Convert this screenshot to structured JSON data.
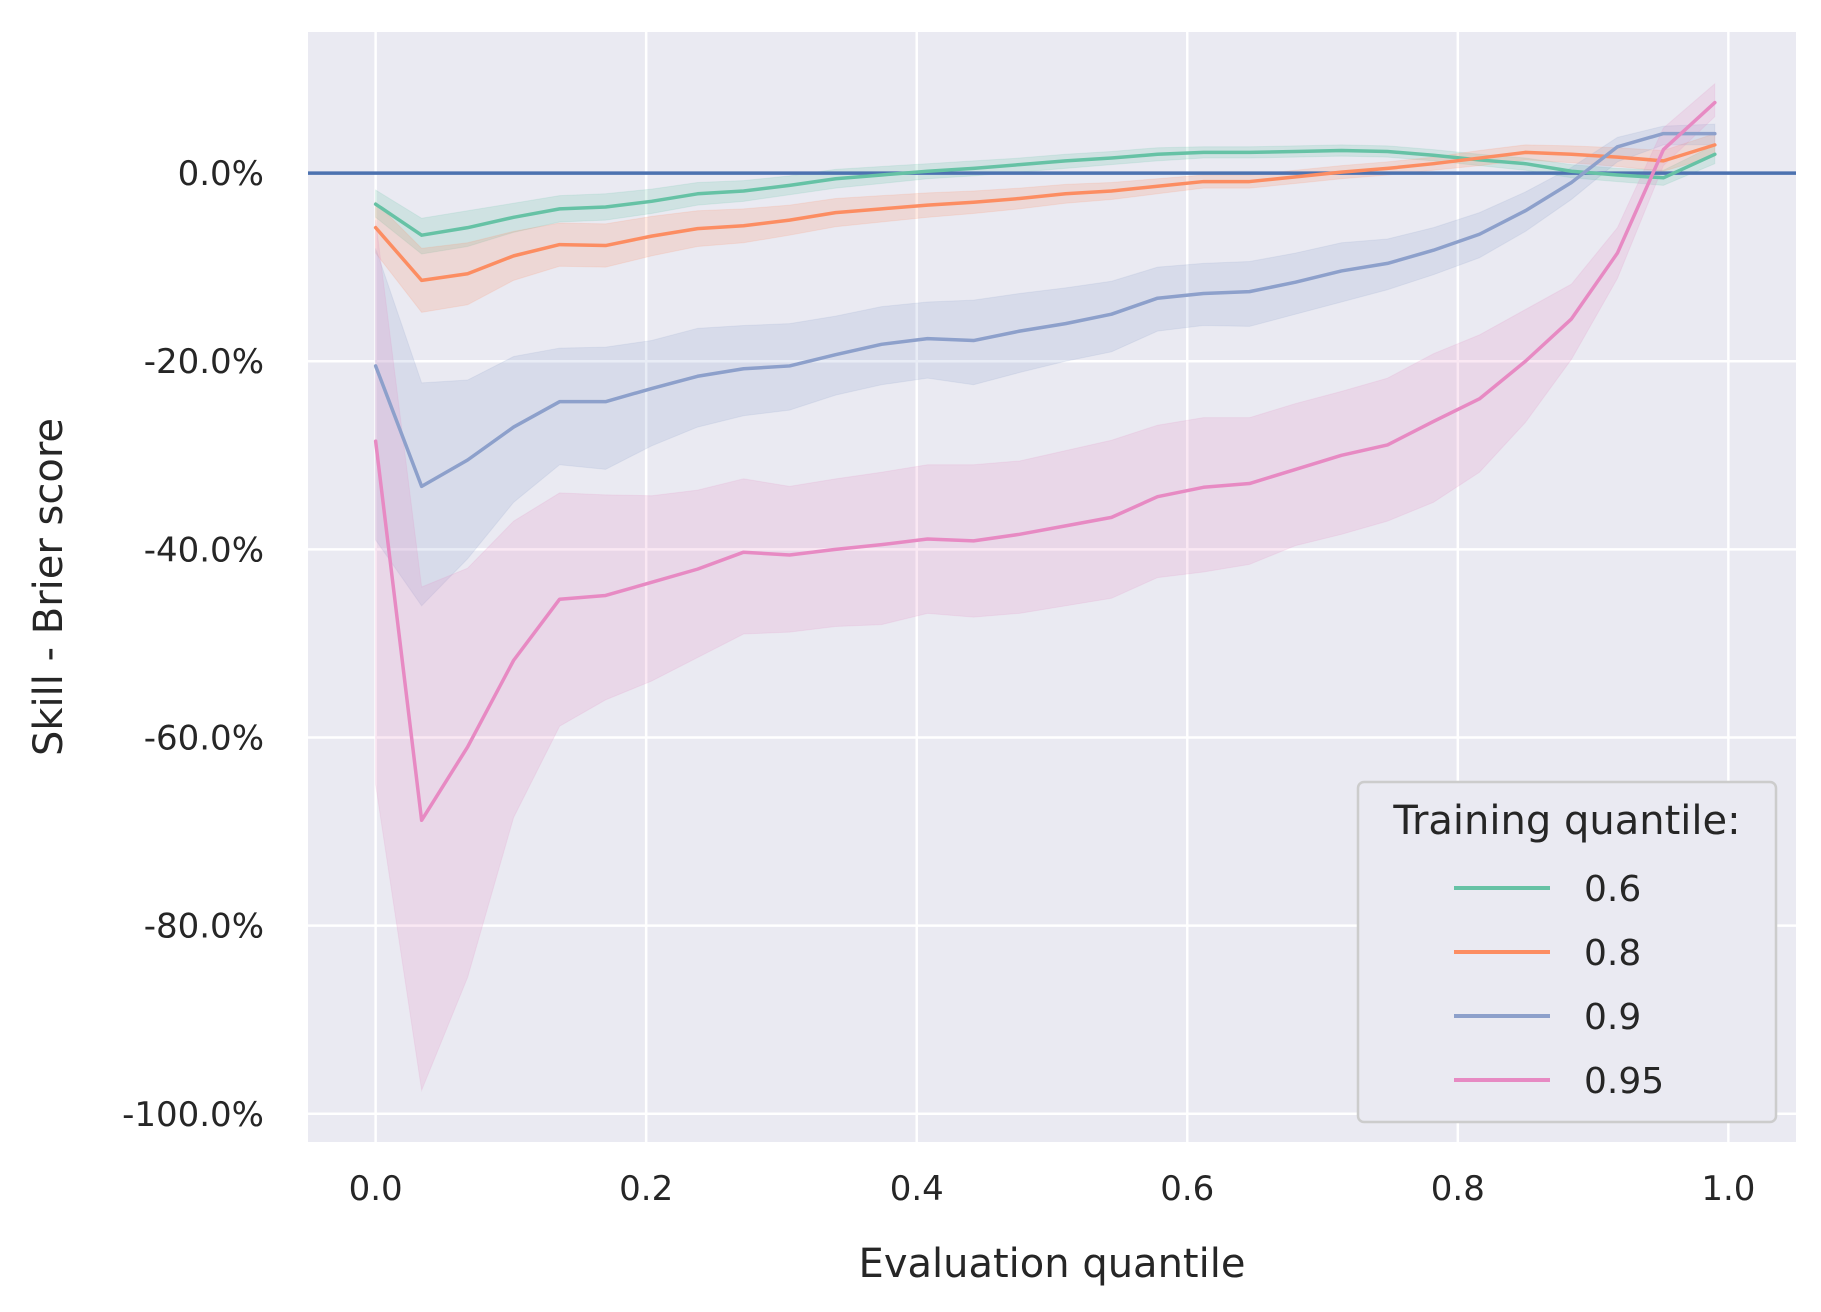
{
  "chart_data": {
    "type": "line",
    "xlabel": "Evaluation quantile",
    "ylabel": "Skill - Brier score",
    "xlim": [
      -0.05,
      1.05
    ],
    "ylim": [
      -1.03,
      0.15
    ],
    "xticks": [
      0.0,
      0.2,
      0.4,
      0.6,
      0.8,
      1.0
    ],
    "xtick_labels": [
      "0.0",
      "0.2",
      "0.4",
      "0.6",
      "0.8",
      "1.0"
    ],
    "yticks": [
      0.0,
      -0.2,
      -0.4,
      -0.6,
      -0.8,
      -1.0
    ],
    "ytick_labels": [
      "0.0%",
      "-20.0%",
      "-40.0%",
      "-60.0%",
      "-80.0%",
      "-100.0%"
    ],
    "grid": true,
    "reference_line": {
      "y": 0.0,
      "color": "#4c72b0"
    },
    "legend": {
      "title": "Training quantile:",
      "placement": "lower-right"
    },
    "x": [
      0.0,
      0.034,
      0.068,
      0.102,
      0.136,
      0.17,
      0.204,
      0.238,
      0.272,
      0.306,
      0.34,
      0.374,
      0.408,
      0.442,
      0.476,
      0.51,
      0.544,
      0.578,
      0.612,
      0.646,
      0.68,
      0.714,
      0.748,
      0.782,
      0.816,
      0.85,
      0.884,
      0.918,
      0.952,
      0.99
    ],
    "series": [
      {
        "name": "0.6",
        "color": "#66c2a5",
        "values": [
          -0.033,
          -0.066,
          -0.058,
          -0.047,
          -0.038,
          -0.036,
          -0.03,
          -0.022,
          -0.019,
          -0.013,
          -0.006,
          -0.002,
          0.002,
          0.005,
          0.009,
          0.013,
          0.016,
          0.02,
          0.022,
          0.022,
          0.023,
          0.024,
          0.023,
          0.019,
          0.014,
          0.01,
          0.002,
          -0.002,
          -0.005,
          0.02
        ],
        "lower": [
          -0.047,
          -0.086,
          -0.078,
          -0.063,
          -0.052,
          -0.05,
          -0.043,
          -0.034,
          -0.03,
          -0.023,
          -0.016,
          -0.011,
          -0.006,
          -0.003,
          0.001,
          0.005,
          0.009,
          0.013,
          0.016,
          0.016,
          0.017,
          0.018,
          0.017,
          0.013,
          0.008,
          0.003,
          -0.005,
          -0.009,
          -0.013,
          0.01
        ],
        "upper": [
          -0.018,
          -0.048,
          -0.04,
          -0.032,
          -0.024,
          -0.022,
          -0.017,
          -0.01,
          -0.008,
          -0.003,
          0.004,
          0.007,
          0.01,
          0.013,
          0.016,
          0.02,
          0.023,
          0.027,
          0.028,
          0.028,
          0.029,
          0.03,
          0.029,
          0.025,
          0.02,
          0.016,
          0.009,
          0.005,
          0.003,
          0.03
        ]
      },
      {
        "name": "0.8",
        "color": "#fc8d62",
        "values": [
          -0.058,
          -0.114,
          -0.107,
          -0.088,
          -0.076,
          -0.077,
          -0.067,
          -0.059,
          -0.056,
          -0.05,
          -0.042,
          -0.038,
          -0.034,
          -0.031,
          -0.027,
          -0.022,
          -0.019,
          -0.014,
          -0.009,
          -0.009,
          -0.004,
          0.001,
          0.005,
          0.01,
          0.016,
          0.022,
          0.02,
          0.017,
          0.013,
          0.03
        ],
        "lower": [
          -0.085,
          -0.148,
          -0.14,
          -0.114,
          -0.099,
          -0.1,
          -0.088,
          -0.078,
          -0.074,
          -0.066,
          -0.057,
          -0.052,
          -0.047,
          -0.043,
          -0.038,
          -0.032,
          -0.028,
          -0.022,
          -0.016,
          -0.016,
          -0.011,
          -0.006,
          -0.002,
          0.003,
          0.008,
          0.014,
          0.011,
          0.007,
          0.002,
          0.018
        ],
        "upper": [
          -0.031,
          -0.08,
          -0.074,
          -0.062,
          -0.053,
          -0.054,
          -0.046,
          -0.04,
          -0.038,
          -0.034,
          -0.027,
          -0.024,
          -0.021,
          -0.019,
          -0.016,
          -0.012,
          -0.01,
          -0.006,
          -0.002,
          -0.002,
          0.003,
          0.008,
          0.012,
          0.017,
          0.024,
          0.03,
          0.029,
          0.027,
          0.024,
          0.042
        ]
      },
      {
        "name": "0.9",
        "color": "#8da0cb",
        "values": [
          -0.205,
          -0.333,
          -0.305,
          -0.27,
          -0.243,
          -0.243,
          -0.229,
          -0.216,
          -0.208,
          -0.205,
          -0.193,
          -0.182,
          -0.176,
          -0.178,
          -0.168,
          -0.16,
          -0.15,
          -0.133,
          -0.128,
          -0.126,
          -0.116,
          -0.104,
          -0.096,
          -0.082,
          -0.065,
          -0.04,
          -0.01,
          0.028,
          0.042,
          0.042
        ],
        "lower": [
          -0.39,
          -0.46,
          -0.41,
          -0.35,
          -0.31,
          -0.315,
          -0.29,
          -0.27,
          -0.258,
          -0.252,
          -0.236,
          -0.225,
          -0.218,
          -0.225,
          -0.212,
          -0.2,
          -0.19,
          -0.168,
          -0.162,
          -0.163,
          -0.15,
          -0.137,
          -0.124,
          -0.108,
          -0.09,
          -0.062,
          -0.028,
          0.012,
          0.03,
          0.03
        ],
        "upper": [
          -0.08,
          -0.223,
          -0.22,
          -0.195,
          -0.186,
          -0.185,
          -0.178,
          -0.165,
          -0.162,
          -0.16,
          -0.152,
          -0.142,
          -0.137,
          -0.135,
          -0.128,
          -0.122,
          -0.115,
          -0.1,
          -0.096,
          -0.094,
          -0.085,
          -0.074,
          -0.07,
          -0.058,
          -0.042,
          -0.02,
          0.006,
          0.038,
          0.05,
          0.052
        ]
      },
      {
        "name": "0.95",
        "color": "#e78ac3",
        "values": [
          -0.285,
          -0.688,
          -0.61,
          -0.518,
          -0.453,
          -0.449,
          -0.435,
          -0.421,
          -0.403,
          -0.406,
          -0.4,
          -0.395,
          -0.389,
          -0.391,
          -0.384,
          -0.375,
          -0.366,
          -0.344,
          -0.334,
          -0.33,
          -0.315,
          -0.3,
          -0.289,
          -0.264,
          -0.24,
          -0.2,
          -0.155,
          -0.085,
          0.025,
          0.075
        ],
        "lower": [
          -0.65,
          -0.975,
          -0.855,
          -0.685,
          -0.588,
          -0.56,
          -0.54,
          -0.515,
          -0.49,
          -0.488,
          -0.482,
          -0.48,
          -0.468,
          -0.472,
          -0.468,
          -0.46,
          -0.452,
          -0.43,
          -0.424,
          -0.416,
          -0.396,
          -0.384,
          -0.37,
          -0.35,
          -0.318,
          -0.265,
          -0.198,
          -0.112,
          0.008,
          0.06
        ],
        "upper": [
          -0.05,
          -0.44,
          -0.42,
          -0.37,
          -0.34,
          -0.342,
          -0.343,
          -0.337,
          -0.325,
          -0.333,
          -0.325,
          -0.318,
          -0.31,
          -0.31,
          -0.306,
          -0.295,
          -0.284,
          -0.268,
          -0.26,
          -0.26,
          -0.245,
          -0.232,
          -0.218,
          -0.192,
          -0.172,
          -0.145,
          -0.118,
          -0.058,
          0.048,
          0.095
        ]
      }
    ]
  }
}
